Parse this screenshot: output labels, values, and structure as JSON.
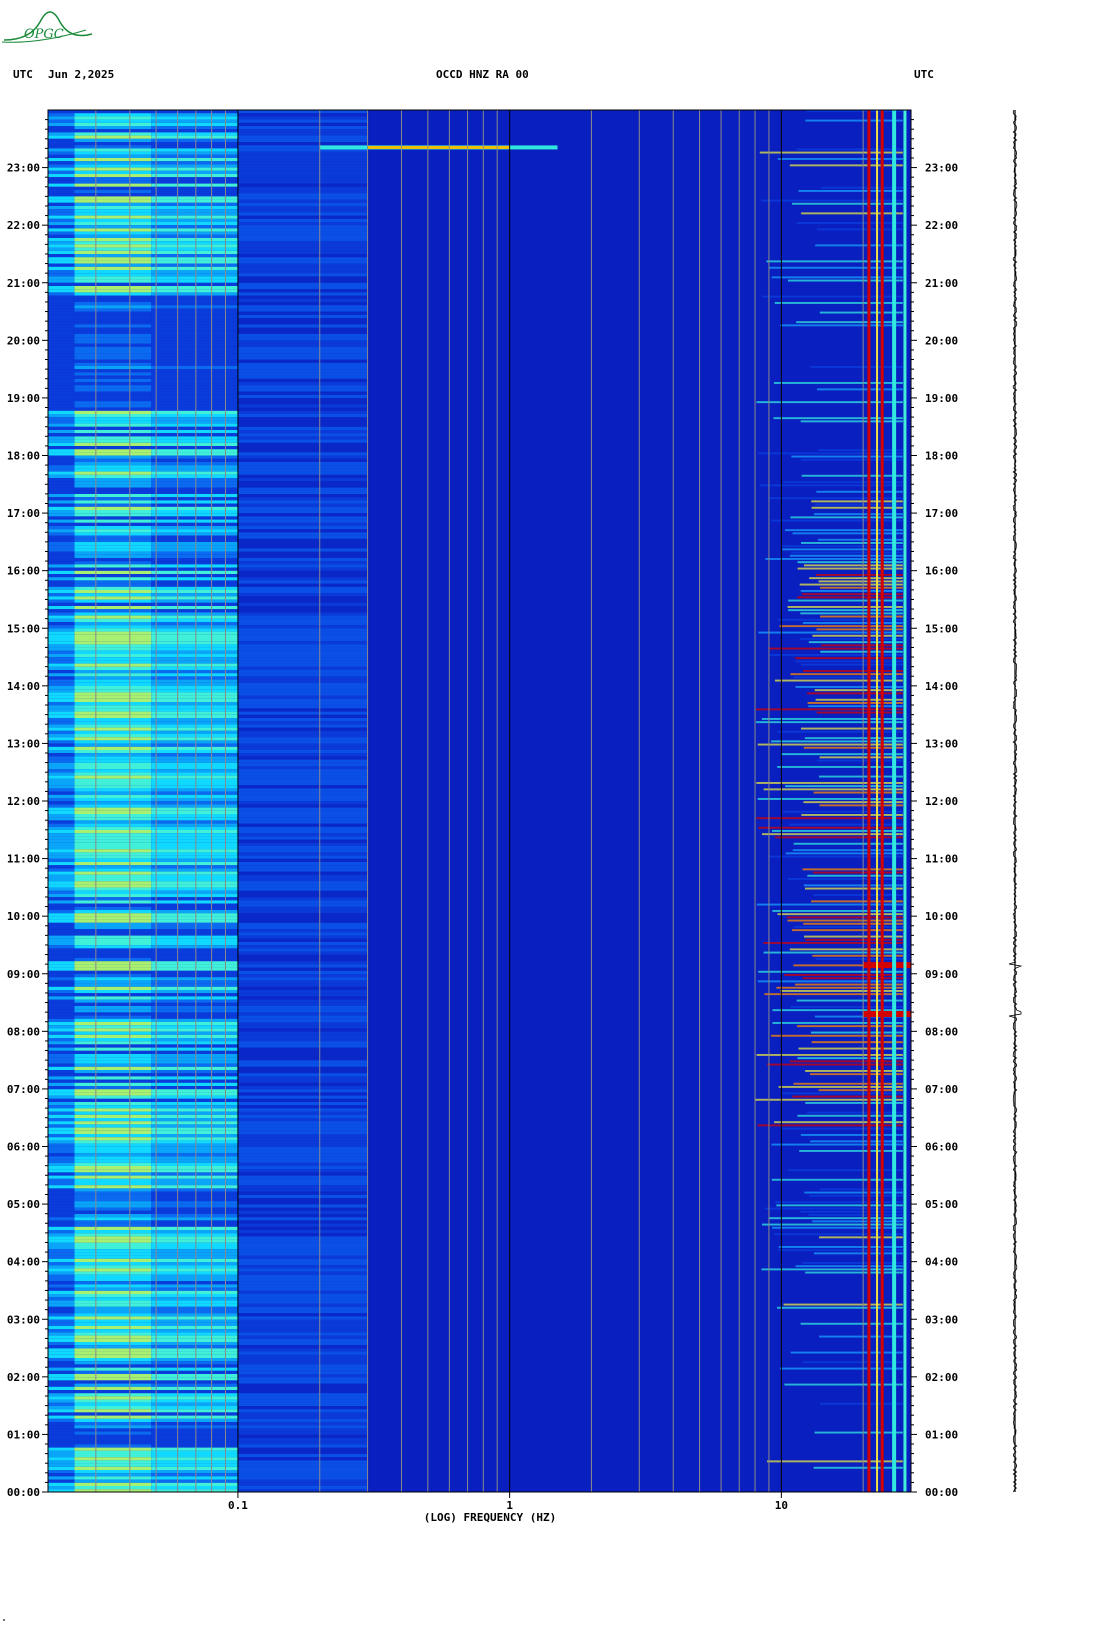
{
  "header": {
    "left_label": "UTC",
    "date": "Jun 2,2025",
    "station": "OCCD HNZ RA 00",
    "right_label": "UTC",
    "logo_text": "OPGC"
  },
  "footer": {
    "bottom_mark": "\""
  },
  "colors": {
    "background_blue": "#0a1fbf",
    "low_freq_cyan": "#00d8ff",
    "high_energy": "#d40000",
    "logo_green": "#1a8a3a"
  },
  "chart_data": {
    "type": "heatmap",
    "title": "OCCD HNZ RA 00",
    "xlabel": "(LOG) FREQUENCY (HZ)",
    "ylabel": "UTC",
    "x_scale": "log",
    "x_range_hz": [
      0.02,
      30
    ],
    "x_tick_labels": [
      {
        "value": 0.1,
        "label": "0.1"
      },
      {
        "value": 1,
        "label": "1"
      },
      {
        "value": 10,
        "label": "10"
      }
    ],
    "y_range_hours": [
      0,
      24
    ],
    "y_tick_labels": [
      "00:00",
      "01:00",
      "02:00",
      "03:00",
      "04:00",
      "05:00",
      "06:00",
      "07:00",
      "08:00",
      "09:00",
      "10:00",
      "11:00",
      "12:00",
      "13:00",
      "14:00",
      "15:00",
      "16:00",
      "17:00",
      "18:00",
      "19:00",
      "20:00",
      "21:00",
      "22:00",
      "23:00"
    ],
    "features": [
      {
        "name": "microseism band",
        "freq_hz": [
          0.025,
          0.1
        ],
        "level": "high"
      },
      {
        "name": "persistent narrow lines",
        "freq_hz": [
          20,
          30
        ],
        "level": "very high"
      },
      {
        "name": "transient near 23:20",
        "freq_hz": [
          0.2,
          1.5
        ],
        "time_utc": "23:20",
        "level": "high"
      },
      {
        "name": "events",
        "time_utc": [
          "08:20",
          "09:15"
        ],
        "level": "high"
      }
    ],
    "grid": true
  }
}
